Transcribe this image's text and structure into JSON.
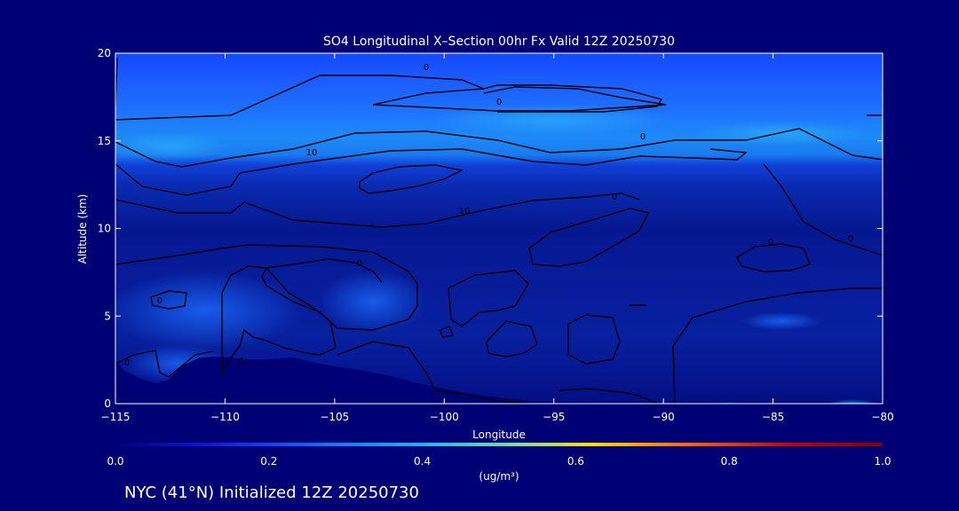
{
  "chart_data": {
    "type": "heatmap",
    "title": "SO4 Longitudinal X–Section 00hr  Fx Valid 12Z 20250730",
    "xlabel": "Longitude",
    "ylabel": "Altitude (km)",
    "xlim": [
      -115,
      -80
    ],
    "ylim": [
      0,
      20
    ],
    "x_ticks": [
      -115,
      -110,
      -105,
      -100,
      -95,
      -90,
      -85,
      -80
    ],
    "x_tick_labels": [
      "−115",
      "−110",
      "−105",
      "−100",
      "−95",
      "−90",
      "−85",
      "−80"
    ],
    "y_ticks": [
      0,
      5,
      10,
      15,
      20
    ],
    "y_tick_labels": [
      "0",
      "5",
      "10",
      "15",
      "20"
    ],
    "colorbar": {
      "min": 0.0,
      "max": 1.0,
      "ticks": [
        0.0,
        0.2,
        0.4,
        0.6,
        0.8,
        1.0
      ],
      "tick_labels": [
        "0.0",
        "0.2",
        "0.4",
        "0.6",
        "0.8",
        "1.0"
      ],
      "units": "(ug/m³)",
      "colors": [
        "#00007a",
        "#0a1ad8",
        "#1560ff",
        "#22b4f0",
        "#6fe6a0",
        "#ffe000",
        "#ff6000",
        "#c80000",
        "#800000"
      ]
    },
    "contour_labels": [
      "0",
      "0",
      "0",
      "10",
      "10",
      "0",
      "0",
      "0",
      "0",
      "0",
      "0",
      "0"
    ],
    "colors": {
      "background": "#000074",
      "text": "#ffffff",
      "contour": "#000000"
    }
  },
  "footer": "NYC (41°N) Initialized 12Z 20250730"
}
